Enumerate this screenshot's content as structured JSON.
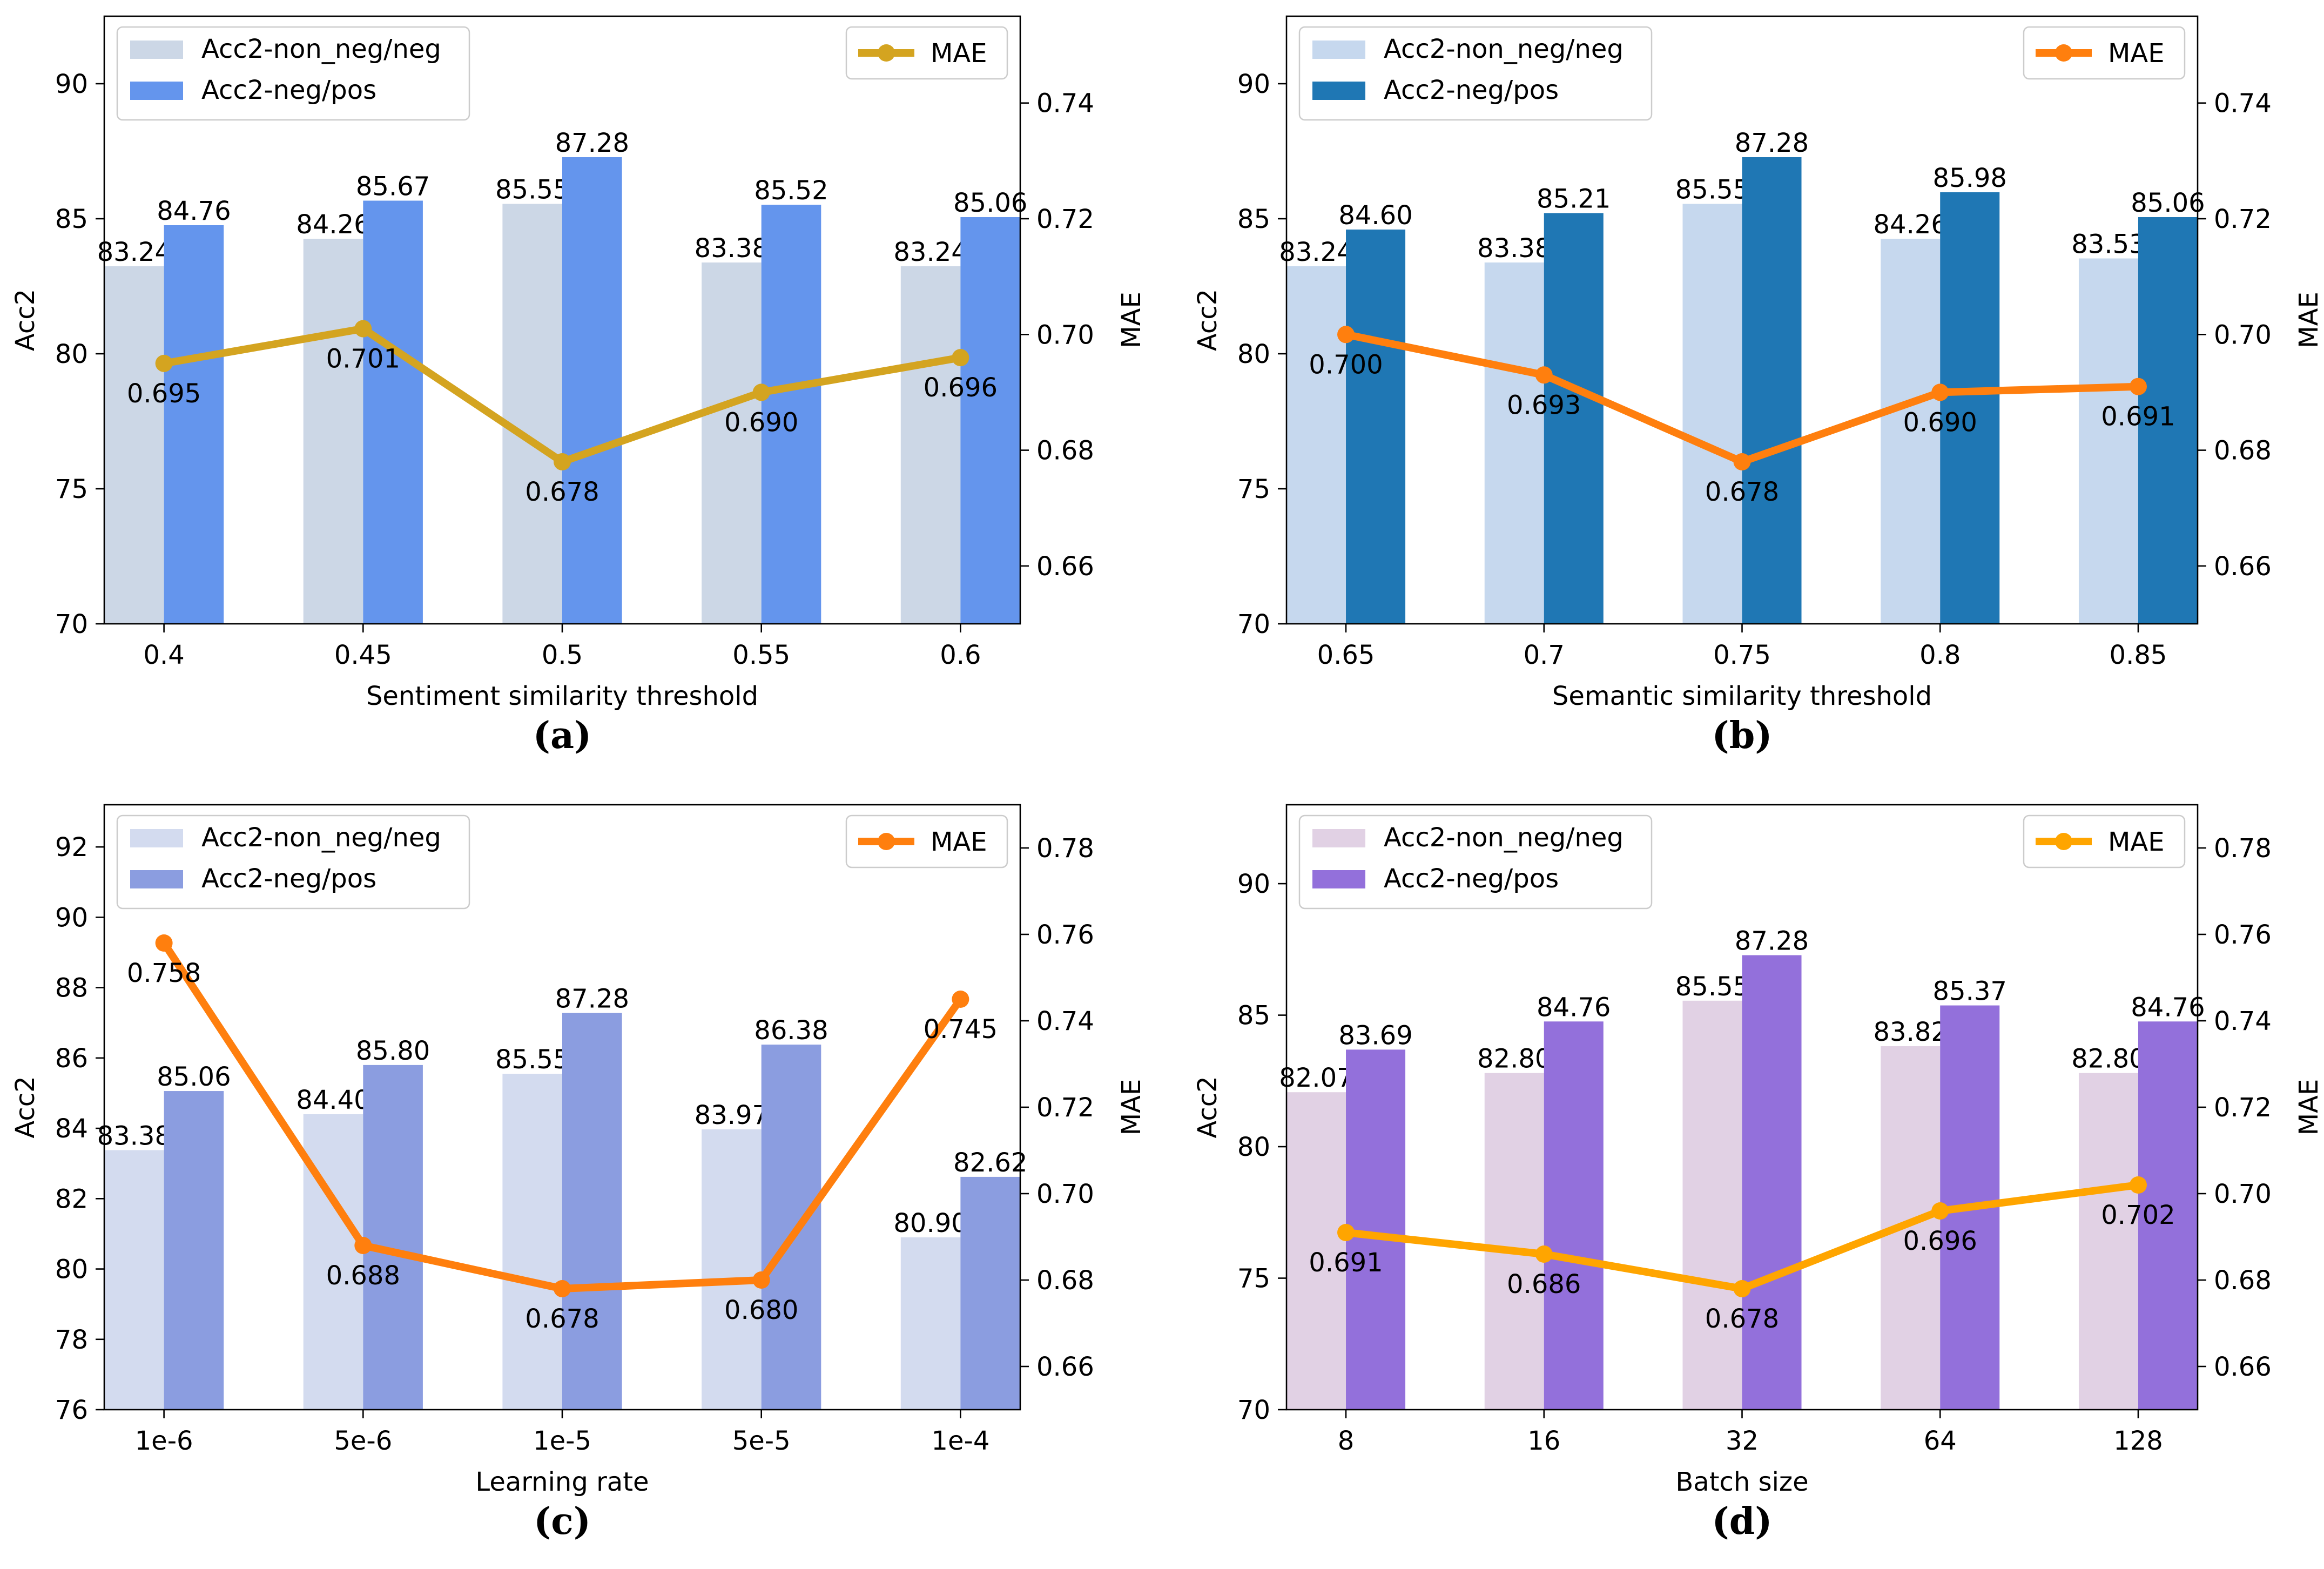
{
  "chart_data": [
    {
      "type": "bar",
      "panel_label": "(a)",
      "xlabel": "Sentiment similarity threshold",
      "ylabel": "Acc2",
      "y2label": "MAE",
      "categories": [
        "0.4",
        "0.45",
        "0.5",
        "0.55",
        "0.6"
      ],
      "ylim": [
        70,
        92.5
      ],
      "yticks": [
        "70",
        "75",
        "80",
        "85",
        "90"
      ],
      "y2lim": [
        0.65,
        0.755
      ],
      "y2ticks": [
        "0.66",
        "0.68",
        "0.70",
        "0.72",
        "0.74"
      ],
      "series": [
        {
          "name": "Acc2-non_neg/neg",
          "values": [
            83.24,
            84.26,
            85.55,
            83.38,
            83.24
          ],
          "labels": [
            "83.24",
            "84.26",
            "85.55",
            "83.38",
            "83.24"
          ],
          "color": "#ccd7e6"
        },
        {
          "name": "Acc2-neg/pos",
          "values": [
            84.76,
            85.67,
            87.28,
            85.52,
            85.06
          ],
          "labels": [
            "84.76",
            "85.67",
            "87.28",
            "85.52",
            "85.06"
          ],
          "color": "#6495ed"
        }
      ],
      "line": {
        "name": "MAE",
        "values": [
          0.695,
          0.701,
          0.678,
          0.69,
          0.696
        ],
        "labels": [
          "0.695",
          "0.701",
          "0.678",
          "0.690",
          "0.696"
        ],
        "color": "#d4a420"
      }
    },
    {
      "type": "bar",
      "panel_label": "(b)",
      "xlabel": "Semantic similarity threshold",
      "ylabel": "Acc2",
      "y2label": "MAE",
      "categories": [
        "0.65",
        "0.7",
        "0.75",
        "0.8",
        "0.85"
      ],
      "ylim": [
        70,
        92.5
      ],
      "yticks": [
        "70",
        "75",
        "80",
        "85",
        "90"
      ],
      "y2lim": [
        0.65,
        0.755
      ],
      "y2ticks": [
        "0.66",
        "0.68",
        "0.70",
        "0.72",
        "0.74"
      ],
      "series": [
        {
          "name": "Acc2-non_neg/neg",
          "values": [
            83.24,
            83.38,
            85.55,
            84.26,
            83.53
          ],
          "labels": [
            "83.24",
            "83.38",
            "85.55",
            "84.26",
            "83.53"
          ],
          "color": "#c6d8ee"
        },
        {
          "name": "Acc2-neg/pos",
          "values": [
            84.6,
            85.21,
            87.28,
            85.98,
            85.06
          ],
          "labels": [
            "84.60",
            "85.21",
            "87.28",
            "85.98",
            "85.06"
          ],
          "color": "#1f77b4"
        }
      ],
      "line": {
        "name": "MAE",
        "values": [
          0.7,
          0.693,
          0.678,
          0.69,
          0.691
        ],
        "labels": [
          "0.700",
          "0.693",
          "0.678",
          "0.690",
          "0.691"
        ],
        "color": "#ff7f0e"
      }
    },
    {
      "type": "bar",
      "panel_label": "(c)",
      "xlabel": "Learning rate",
      "ylabel": "Acc2",
      "y2label": "MAE",
      "categories": [
        "1e-6",
        "5e-6",
        "1e-5",
        "5e-5",
        "1e-4"
      ],
      "ylim": [
        76,
        93.2
      ],
      "yticks": [
        "76",
        "78",
        "80",
        "82",
        "84",
        "86",
        "88",
        "90",
        "92"
      ],
      "y2lim": [
        0.65,
        0.79
      ],
      "y2ticks": [
        "0.66",
        "0.68",
        "0.70",
        "0.72",
        "0.74",
        "0.76",
        "0.78"
      ],
      "series": [
        {
          "name": "Acc2-non_neg/neg",
          "values": [
            83.38,
            84.4,
            85.55,
            83.97,
            80.9
          ],
          "labels": [
            "83.38",
            "84.40",
            "85.55",
            "83.97",
            "80.90"
          ],
          "color": "#d3dbef"
        },
        {
          "name": "Acc2-neg/pos",
          "values": [
            85.06,
            85.8,
            87.28,
            86.38,
            82.62
          ],
          "labels": [
            "85.06",
            "85.80",
            "87.28",
            "86.38",
            "82.62"
          ],
          "color": "#8b9de0"
        }
      ],
      "line": {
        "name": "MAE",
        "values": [
          0.758,
          0.688,
          0.678,
          0.68,
          0.745
        ],
        "labels": [
          "0.758",
          "0.688",
          "0.678",
          "0.680",
          "0.745"
        ],
        "color": "#ff7f0e"
      }
    },
    {
      "type": "bar",
      "panel_label": "(d)",
      "xlabel": "Batch size",
      "ylabel": "Acc2",
      "y2label": "MAE",
      "categories": [
        "8",
        "16",
        "32",
        "64",
        "128"
      ],
      "ylim": [
        70,
        93
      ],
      "yticks": [
        "70",
        "75",
        "80",
        "85",
        "90"
      ],
      "y2lim": [
        0.65,
        0.79
      ],
      "y2ticks": [
        "0.66",
        "0.68",
        "0.70",
        "0.72",
        "0.74",
        "0.76",
        "0.78"
      ],
      "series": [
        {
          "name": "Acc2-non_neg/neg",
          "values": [
            82.07,
            82.8,
            85.55,
            83.82,
            82.8
          ],
          "labels": [
            "82.07",
            "82.80",
            "85.55",
            "83.82",
            "82.80"
          ],
          "color": "#e1d1e4"
        },
        {
          "name": "Acc2-neg/pos",
          "values": [
            83.69,
            84.76,
            87.28,
            85.37,
            84.76
          ],
          "labels": [
            "83.69",
            "84.76",
            "87.28",
            "85.37",
            "84.76"
          ],
          "color": "#9370db"
        }
      ],
      "line": {
        "name": "MAE",
        "values": [
          0.691,
          0.686,
          0.678,
          0.696,
          0.702
        ],
        "labels": [
          "0.691",
          "0.686",
          "0.678",
          "0.696",
          "0.702"
        ],
        "color": "#ffa500"
      }
    }
  ]
}
